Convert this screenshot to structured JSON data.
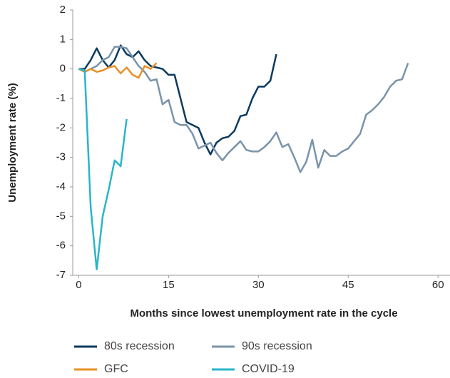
{
  "chart_data": {
    "type": "line",
    "xlabel": "Months since lowest unemployment rate in the cycle",
    "ylabel": "Unemployment rate (%)",
    "xlim": [
      -1,
      62
    ],
    "xticks": [
      0,
      15,
      30,
      45,
      60
    ],
    "ylim": [
      -7,
      2
    ],
    "yticks": [
      2,
      1,
      0,
      -1,
      -2,
      -3,
      -4,
      -5,
      -6,
      -7
    ],
    "series": [
      {
        "name": "80s recession",
        "color": "#0b3a5e",
        "x": [
          0,
          1,
          2,
          3,
          4,
          5,
          6,
          7,
          8,
          9,
          10,
          11,
          12,
          13,
          14,
          15,
          16,
          17,
          18,
          19,
          20,
          21,
          22,
          23,
          24,
          25,
          26,
          27,
          28,
          29,
          30,
          31,
          32,
          33
        ],
        "values": [
          0,
          0,
          0.3,
          0.7,
          0.3,
          0.05,
          0.3,
          0.8,
          0.5,
          0.4,
          0.6,
          0.3,
          0.1,
          0.05,
          0,
          -0.2,
          -0.2,
          -1.0,
          -1.8,
          -1.9,
          -2.0,
          -2.5,
          -2.9,
          -2.5,
          -2.35,
          -2.3,
          -2.1,
          -1.6,
          -1.55,
          -1.0,
          -0.6,
          -0.6,
          -0.4,
          0.5
        ]
      },
      {
        "name": "90s recession",
        "color": "#7a93aa",
        "x": [
          0,
          1,
          2,
          3,
          4,
          5,
          6,
          7,
          8,
          9,
          10,
          11,
          12,
          13,
          14,
          15,
          16,
          17,
          18,
          19,
          20,
          21,
          22,
          23,
          24,
          25,
          26,
          27,
          28,
          29,
          30,
          31,
          32,
          33,
          34,
          35,
          36,
          37,
          38,
          39,
          40,
          41,
          42,
          43,
          44,
          45,
          46,
          47,
          48,
          49,
          50,
          51,
          52,
          53,
          54,
          55
        ],
        "values": [
          0,
          -0.1,
          0,
          0.1,
          0.3,
          0.4,
          0.75,
          0.75,
          0.7,
          0.4,
          0.1,
          -0.1,
          -0.4,
          -0.35,
          -1.2,
          -1.05,
          -1.8,
          -1.9,
          -1.9,
          -2.2,
          -2.7,
          -2.6,
          -2.5,
          -2.85,
          -3.1,
          -2.85,
          -2.65,
          -2.45,
          -2.75,
          -2.8,
          -2.8,
          -2.65,
          -2.45,
          -2.15,
          -2.65,
          -2.55,
          -3.0,
          -3.5,
          -3.15,
          -2.4,
          -3.35,
          -2.75,
          -2.95,
          -2.95,
          -2.8,
          -2.7,
          -2.45,
          -2.2,
          -1.55,
          -1.4,
          -1.2,
          -0.95,
          -0.6,
          -0.4,
          -0.35,
          0.2
        ]
      },
      {
        "name": "GFC",
        "color": "#e8902a",
        "x": [
          0,
          1,
          2,
          3,
          4,
          5,
          6,
          7,
          8,
          9,
          10,
          11,
          12,
          13
        ],
        "values": [
          0,
          -0.1,
          0,
          -0.1,
          -0.05,
          0.05,
          0.1,
          -0.15,
          0.05,
          -0.2,
          -0.3,
          0.1,
          0,
          0.2
        ]
      },
      {
        "name": "COVID-19",
        "color": "#2ab5c8",
        "x": [
          0,
          1,
          2,
          3,
          4,
          5,
          6,
          7,
          8
        ],
        "values": [
          0,
          -0.05,
          -4.7,
          -6.8,
          -5.0,
          -4.1,
          -3.1,
          -3.3,
          -1.7
        ]
      }
    ]
  }
}
